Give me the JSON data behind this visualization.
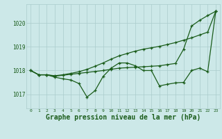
{
  "bg_color": "#cce8e8",
  "grid_color": "#aacccc",
  "line_color": "#1a5c1a",
  "xlabel": "Graphe pression niveau de la mer (hPa)",
  "xlabel_fontsize": 7.0,
  "ylabel_ticks": [
    1017,
    1018,
    1019,
    1020
  ],
  "xlim": [
    -0.5,
    23.5
  ],
  "ylim": [
    1016.4,
    1020.8
  ],
  "series": [
    {
      "x": [
        0,
        1,
        2,
        3,
        4,
        5,
        6,
        7,
        8,
        9,
        10,
        11,
        12,
        13,
        14,
        15,
        16,
        17,
        18,
        19,
        20,
        21,
        22,
        23
      ],
      "y": [
        1018.0,
        1017.82,
        1017.82,
        1017.78,
        1017.82,
        1017.88,
        1017.95,
        1018.05,
        1018.18,
        1018.32,
        1018.48,
        1018.62,
        1018.72,
        1018.82,
        1018.9,
        1018.96,
        1019.02,
        1019.1,
        1019.18,
        1019.28,
        1019.38,
        1019.5,
        1019.62,
        1020.5
      ]
    },
    {
      "x": [
        0,
        1,
        2,
        3,
        4,
        5,
        6,
        7,
        8,
        9,
        10,
        11,
        12,
        13,
        14,
        15,
        16,
        17,
        18,
        19,
        20,
        21,
        22,
        23
      ],
      "y": [
        1018.0,
        1017.82,
        1017.82,
        1017.76,
        1017.8,
        1017.84,
        1017.88,
        1017.92,
        1017.96,
        1018.0,
        1018.05,
        1018.1,
        1018.12,
        1018.14,
        1018.16,
        1018.18,
        1018.2,
        1018.25,
        1018.3,
        1018.9,
        1019.88,
        1020.12,
        1020.32,
        1020.5
      ]
    },
    {
      "x": [
        0,
        1,
        2,
        3,
        4,
        5,
        6,
        7,
        8,
        9,
        10,
        11,
        12,
        13,
        14,
        15,
        16,
        17,
        18,
        19,
        20,
        21,
        22,
        23
      ],
      "y": [
        1018.0,
        1017.82,
        1017.82,
        1017.72,
        1017.65,
        1017.6,
        1017.45,
        1016.88,
        1017.15,
        1017.75,
        1018.1,
        1018.32,
        1018.32,
        1018.2,
        1018.0,
        1018.0,
        1017.35,
        1017.42,
        1017.48,
        1017.5,
        1018.0,
        1018.1,
        1017.95,
        1020.5
      ]
    }
  ]
}
